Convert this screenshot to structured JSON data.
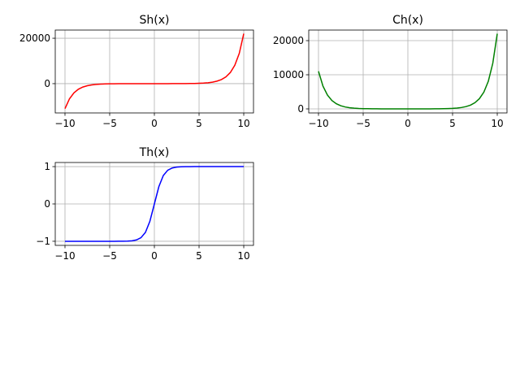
{
  "chart_data": [
    {
      "type": "line",
      "title": "Sh(x)",
      "color": "#ff0000",
      "grid": true,
      "x": [
        -10,
        -9.5,
        -9,
        -8.5,
        -8,
        -7.5,
        -7,
        -6.5,
        -6,
        -5.5,
        -5,
        -4.5,
        -4,
        -3.5,
        -3,
        -2.5,
        -2,
        -1.5,
        -1,
        -0.5,
        0,
        0.5,
        1,
        1.5,
        2,
        2.5,
        3,
        3.5,
        4,
        4.5,
        5,
        5.5,
        6,
        6.5,
        7,
        7.5,
        8,
        8.5,
        9,
        9.5,
        10
      ],
      "values": [
        -11013,
        -6680,
        -4051.5,
        -2457.4,
        -1490.5,
        -904,
        -548.3,
        -332.6,
        -201.7,
        -122.3,
        -74.2,
        -45,
        -27.3,
        -16.5,
        -10,
        -6,
        -3.56,
        -2.02,
        -0.99,
        -0.22,
        0.5,
        1.34,
        2.53,
        4.37,
        7.32,
        12.14,
        20.06,
        33.1,
        54.59,
        90.01,
        148.4,
        244.7,
        403.4,
        665.1,
        1096.6,
        1808,
        2981,
        4915,
        8103,
        13360,
        22026
      ],
      "xlim": [
        -11.09,
        11.09
      ],
      "xticks": [
        {
          "value": -10,
          "label": "−10"
        },
        {
          "value": -5,
          "label": "−5"
        },
        0,
        5,
        10
      ],
      "ylim": [
        -12900,
        23600
      ],
      "yticks": [
        0,
        20000
      ]
    },
    {
      "type": "line",
      "title": "Ch(x)",
      "color": "#008000",
      "grid": true,
      "x": [
        -10,
        -9.5,
        -9,
        -8.5,
        -8,
        -7.5,
        -7,
        -6.5,
        -6,
        -5.5,
        -5,
        -4.5,
        -4,
        -3.5,
        -3,
        -2.5,
        -2,
        -1.5,
        -1,
        -0.5,
        0,
        0.5,
        1,
        1.5,
        2,
        2.5,
        3,
        3.5,
        4,
        4.5,
        5,
        5.5,
        6,
        6.5,
        7,
        7.5,
        8,
        8.5,
        9,
        9.5,
        10
      ],
      "values": [
        11013,
        6680,
        4051.5,
        2457.4,
        1490.5,
        904,
        548.3,
        332.6,
        201.7,
        122.3,
        74.2,
        45,
        27.3,
        16.6,
        10.1,
        6.2,
        3.83,
        2.46,
        1.73,
        1.43,
        1.5,
        1.95,
        2.9,
        4.59,
        7.46,
        12.22,
        20.1,
        33.13,
        54.6,
        90.02,
        148.4,
        244.7,
        403.4,
        665.1,
        1096.6,
        1808,
        2981,
        4915,
        8103,
        13360,
        22026
      ],
      "xlim": [
        -11.09,
        11.09
      ],
      "xticks": [
        {
          "value": -10,
          "label": "−10"
        },
        {
          "value": -5,
          "label": "−5"
        },
        0,
        5,
        10
      ],
      "ylim": [
        -1190,
        23100
      ],
      "yticks": [
        0,
        10000,
        20000
      ]
    },
    {
      "type": "line",
      "title": "Th(x)",
      "color": "#0000ff",
      "grid": true,
      "x": [
        -10,
        -9.5,
        -9,
        -8.5,
        -8,
        -7.5,
        -7,
        -6.5,
        -6,
        -5.5,
        -5,
        -4.5,
        -4,
        -3.5,
        -3,
        -2.5,
        -2,
        -1.5,
        -1,
        -0.5,
        0,
        0.5,
        1,
        1.5,
        2,
        2.5,
        3,
        3.5,
        4,
        4.5,
        5,
        5.5,
        6,
        6.5,
        7,
        7.5,
        8,
        8.5,
        9,
        9.5,
        10
      ],
      "values": [
        -1,
        -1,
        -1,
        -1,
        -1,
        -1,
        -1,
        -1,
        -1,
        -1,
        -1,
        -1,
        -0.999,
        -0.998,
        -0.995,
        -0.987,
        -0.964,
        -0.905,
        -0.762,
        -0.462,
        0,
        0.462,
        0.762,
        0.905,
        0.964,
        0.987,
        0.995,
        0.998,
        0.999,
        1,
        1,
        1,
        1,
        1,
        1,
        1,
        1,
        1,
        1,
        1,
        1
      ],
      "xlim": [
        -11.09,
        11.09
      ],
      "xticks": [
        {
          "value": -10,
          "label": "−10"
        },
        {
          "value": -5,
          "label": "−5"
        },
        0,
        5,
        10
      ],
      "ylim": [
        -1.11,
        1.11
      ],
      "yticks": [
        {
          "value": -1,
          "label": "−1"
        },
        0,
        1
      ]
    }
  ]
}
